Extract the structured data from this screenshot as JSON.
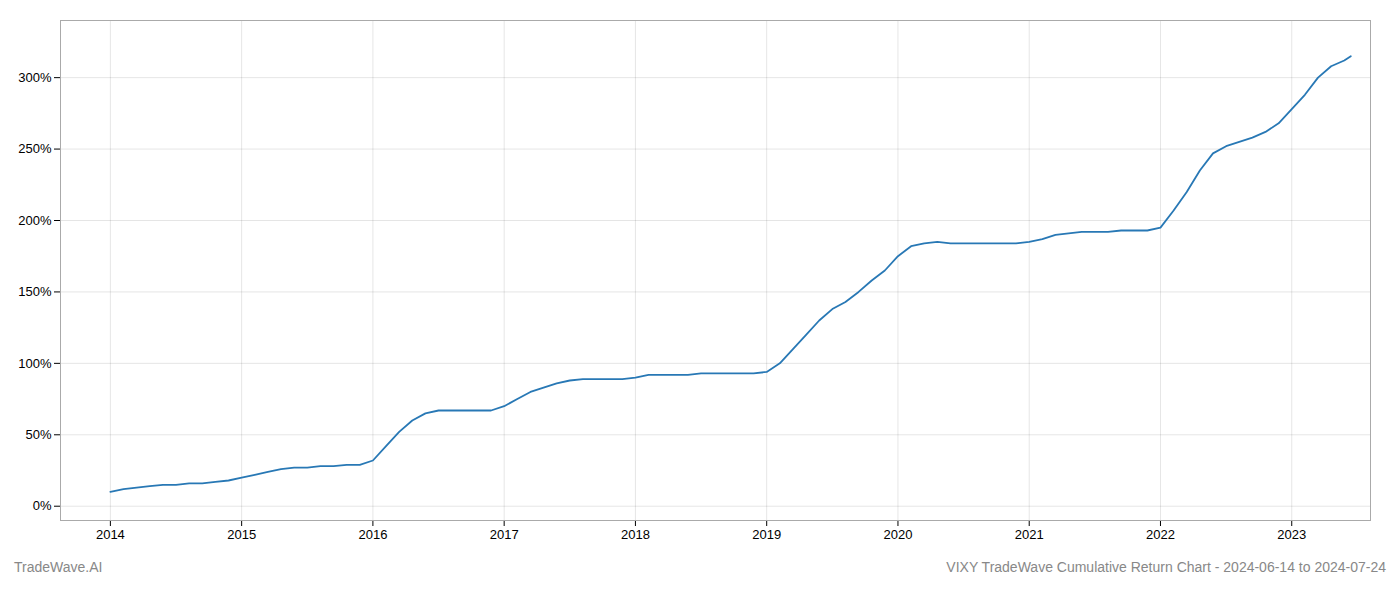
{
  "chart_data": {
    "type": "line",
    "title": "VIXY TradeWave Cumulative Return Chart - 2024-06-14 to 2024-07-24",
    "annotations": [
      "TradeWave.AI"
    ],
    "color": "#2878b5",
    "grid": true,
    "x": [
      2014.0,
      2014.1,
      2014.2,
      2014.3,
      2014.4,
      2014.5,
      2014.6,
      2014.7,
      2014.8,
      2014.9,
      2015.0,
      2015.1,
      2015.2,
      2015.3,
      2015.4,
      2015.5,
      2015.6,
      2015.7,
      2015.8,
      2015.9,
      2016.0,
      2016.1,
      2016.2,
      2016.3,
      2016.4,
      2016.5,
      2016.6,
      2016.7,
      2016.8,
      2016.9,
      2017.0,
      2017.1,
      2017.2,
      2017.3,
      2017.4,
      2017.5,
      2017.6,
      2017.7,
      2017.8,
      2017.9,
      2018.0,
      2018.1,
      2018.2,
      2018.3,
      2018.4,
      2018.5,
      2018.6,
      2018.7,
      2018.8,
      2018.9,
      2019.0,
      2019.1,
      2019.2,
      2019.3,
      2019.4,
      2019.5,
      2019.6,
      2019.7,
      2019.8,
      2019.9,
      2020.0,
      2020.1,
      2020.2,
      2020.3,
      2020.4,
      2020.5,
      2020.6,
      2020.7,
      2020.8,
      2020.9,
      2021.0,
      2021.1,
      2021.2,
      2021.3,
      2021.4,
      2021.5,
      2021.6,
      2021.7,
      2021.8,
      2021.9,
      2022.0,
      2022.1,
      2022.2,
      2022.3,
      2022.4,
      2022.5,
      2022.6,
      2022.7,
      2022.8,
      2022.9,
      2023.0,
      2023.1,
      2023.2,
      2023.3,
      2023.4,
      2023.45
    ],
    "values": [
      10,
      12,
      13,
      14,
      15,
      15,
      16,
      16,
      17,
      18,
      20,
      22,
      24,
      26,
      27,
      27,
      28,
      28,
      29,
      29,
      32,
      42,
      52,
      60,
      65,
      67,
      67,
      67,
      67,
      67,
      70,
      75,
      80,
      83,
      86,
      88,
      89,
      89,
      89,
      89,
      90,
      92,
      92,
      92,
      92,
      93,
      93,
      93,
      93,
      93,
      94,
      100,
      110,
      120,
      130,
      138,
      143,
      150,
      158,
      165,
      175,
      182,
      184,
      185,
      184,
      184,
      184,
      184,
      184,
      184,
      185,
      187,
      190,
      191,
      192,
      192,
      192,
      193,
      193,
      193,
      195,
      207,
      220,
      235,
      247,
      252,
      255,
      258,
      262,
      268,
      278,
      288,
      300,
      308,
      312,
      315
    ],
    "xlim": [
      2013.62,
      2023.6
    ],
    "xticks": [
      2014,
      2015,
      2016,
      2017,
      2018,
      2019,
      2020,
      2021,
      2022,
      2023
    ],
    "ylim": [
      -10,
      340
    ],
    "yticks": [
      {
        "value": 0,
        "label": "0%"
      },
      {
        "value": 50,
        "label": "50%"
      },
      {
        "value": 100,
        "label": "100%"
      },
      {
        "value": 150,
        "label": "150%"
      },
      {
        "value": 200,
        "label": "200%"
      },
      {
        "value": 250,
        "label": "250%"
      },
      {
        "value": 300,
        "label": "300%"
      }
    ]
  }
}
